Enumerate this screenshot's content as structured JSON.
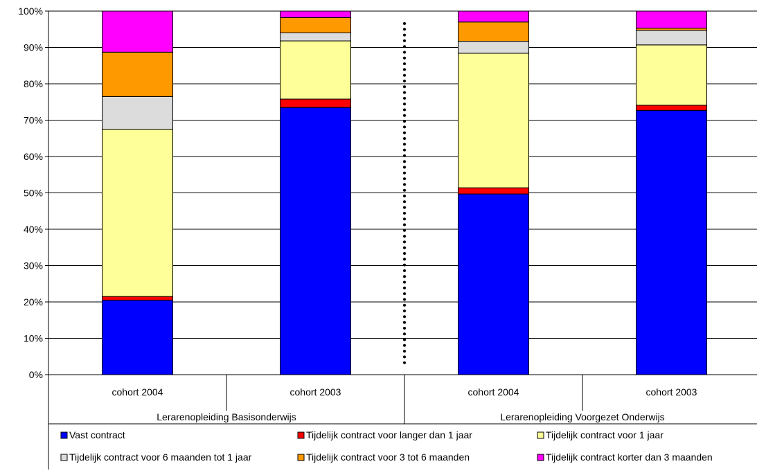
{
  "chart_data": {
    "type": "bar",
    "stacked": true,
    "orientation": "vertical",
    "groups": [
      {
        "label": "Lerarenopleiding Basisonderwijs",
        "categories": [
          "cohort 2004",
          "cohort 2003"
        ]
      },
      {
        "label": "Lerarenopleiding Voorgezet Onderwijs",
        "categories": [
          "cohort 2004",
          "cohort 2003"
        ]
      }
    ],
    "categories": [
      "cohort 2004",
      "cohort 2003",
      "cohort 2004",
      "cohort 2003"
    ],
    "series": [
      {
        "name": "Vast contract",
        "color": "#0000FF",
        "values": [
          20.5,
          73.5,
          49.7,
          72.7
        ]
      },
      {
        "name": "Tijdelijk contract voor langer dan 1 jaar",
        "color": "#FF0000",
        "values": [
          1.0,
          2.3,
          1.7,
          1.4
        ]
      },
      {
        "name": "Tijdelijk contract voor 1 jaar",
        "color": "#FFFF99",
        "values": [
          46.0,
          16.0,
          37.0,
          16.6
        ]
      },
      {
        "name": "Tijdelijk contract voor 6 maanden tot 1 jaar",
        "color": "#DCDCDC",
        "values": [
          9.0,
          2.2,
          3.3,
          4.0
        ]
      },
      {
        "name": "Tijdelijk contract voor 3 tot 6 maanden",
        "color": "#FF9900",
        "values": [
          12.2,
          4.2,
          5.3,
          0.6
        ]
      },
      {
        "name": "Tijdelijk contract korter dan 3 maanden",
        "color": "#FF00FF",
        "values": [
          11.3,
          1.8,
          3.0,
          4.7
        ]
      }
    ],
    "ylim": [
      0,
      100
    ],
    "yticks": [
      "0%",
      "10%",
      "20%",
      "30%",
      "40%",
      "50%",
      "60%",
      "70%",
      "80%",
      "90%",
      "100%"
    ],
    "grid": true,
    "legend_position": "bottom",
    "separator": "dotted vertical line between groups",
    "title": "",
    "xlabel": "",
    "ylabel": ""
  }
}
